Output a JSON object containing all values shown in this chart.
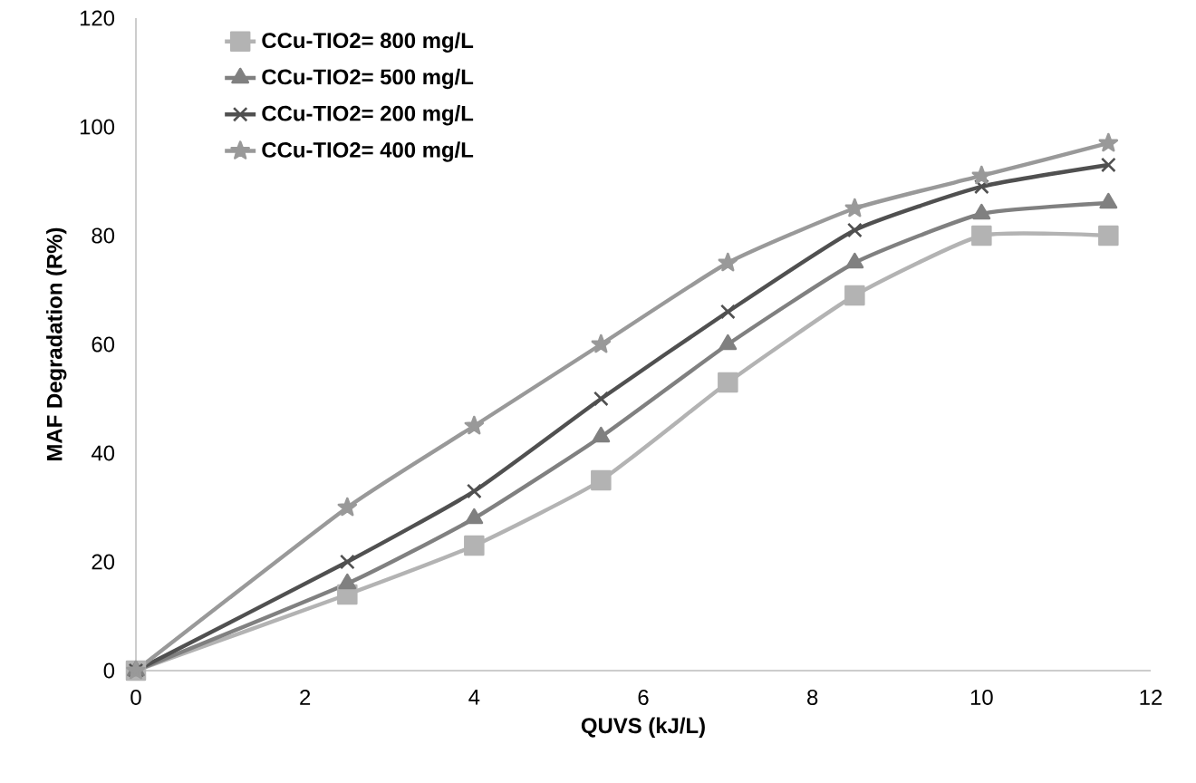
{
  "chart_data": {
    "type": "line",
    "xlabel": "QUVS (kJ/L)",
    "ylabel": "MAF Degradation (R%)",
    "x": [
      0,
      2.5,
      4,
      5.5,
      7,
      8.5,
      10,
      11.5
    ],
    "series": [
      {
        "name": "CCu-TIO2= 800 mg/L",
        "color": "#b3b3b3",
        "marker": "square",
        "values": [
          0,
          14,
          23,
          35,
          53,
          69,
          80,
          80
        ]
      },
      {
        "name": "CCu-TIO2= 500 mg/L",
        "color": "#808080",
        "marker": "triangle",
        "values": [
          0,
          16,
          28,
          43,
          60,
          75,
          84,
          86
        ]
      },
      {
        "name": "CCu-TIO2= 200 mg/L",
        "color": "#505050",
        "marker": "cross",
        "values": [
          0,
          20,
          33,
          50,
          66,
          81,
          89,
          93
        ]
      },
      {
        "name": "CCu-TIO2= 400 mg/L",
        "color": "#999999",
        "marker": "star",
        "values": [
          0,
          30,
          45,
          60,
          75,
          85,
          91,
          97
        ]
      }
    ],
    "xlim": [
      0,
      12
    ],
    "xticks": [
      0,
      2,
      4,
      6,
      8,
      10,
      12
    ],
    "ylim": [
      0,
      120
    ],
    "yticks": [
      0,
      20,
      40,
      60,
      80,
      100,
      120
    ],
    "legend": "top left",
    "grid": false,
    "line_style": "solid"
  }
}
